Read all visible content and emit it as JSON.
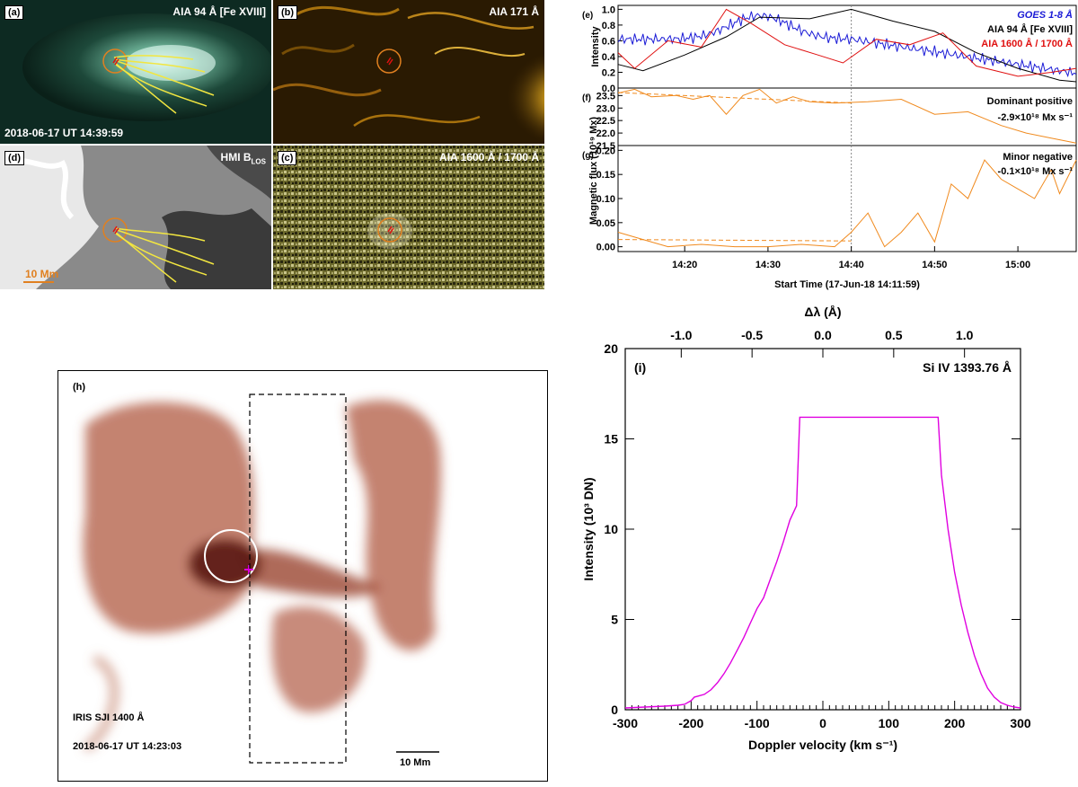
{
  "panels": {
    "a": {
      "tag": "(a)",
      "label": "AIA 94 Å [Fe XVIII]",
      "timestamp": "2018-06-17 UT 14:39:59",
      "bg": "#0d2a22"
    },
    "b": {
      "tag": "(b)",
      "label": "AIA 171 Å",
      "bg": "#2a1a02"
    },
    "d": {
      "tag": "(d)",
      "label": "HMI B",
      "label_sub": "LOS",
      "scale": "10 Mm",
      "bg": "#8a8a8a"
    },
    "c": {
      "tag": "(c)",
      "label": "AIA 1600 Å / 1700 Å",
      "bg": "#6d6a2c"
    },
    "h": {
      "tag": "(h)",
      "label": "IRIS SJI 1400 Å",
      "timestamp": "2018-06-17 UT 14:23:03",
      "scale": "10 Mm"
    }
  },
  "light_curves": {
    "e": {
      "tag": "(e)",
      "ylabel": "Intensity",
      "yticks": [
        "0.0",
        "0.2",
        "0.4",
        "0.6",
        "0.8",
        "1.0"
      ],
      "legend": [
        {
          "text": "GOES 1-8 Å",
          "color": "#1a1ad6"
        },
        {
          "text": "AIA 94 Å [Fe XVIII]",
          "color": "#000000"
        },
        {
          "text": "AIA 1600 Å / 1700 Å",
          "color": "#e01010"
        }
      ]
    },
    "f": {
      "tag": "(f)",
      "yticks": [
        "21.5",
        "22.0",
        "22.5",
        "23.0",
        "23.5"
      ],
      "legend_title": "Dominant positive",
      "legend_rate": "-2.9×10¹⁸ Mx s⁻¹"
    },
    "g": {
      "tag": "(g)",
      "yticks": [
        "0.00",
        "0.05",
        "0.10",
        "0.15",
        "0.20"
      ],
      "legend_title": "Minor negative",
      "legend_rate": "-0.1×10¹⁸ Mx s⁻¹"
    },
    "shared_ylabel": "Magnetic flux (10¹⁹ Mx)",
    "xticks": [
      "14:20",
      "14:30",
      "14:40",
      "14:50",
      "15:00"
    ],
    "xlabel": "Start Time (17-Jun-18 14:11:59)"
  },
  "chart_data": {
    "type": "line",
    "tag": "(i)",
    "title": "Si IV 1393.76 Å",
    "xlabel": "Doppler velocity (km s⁻¹)",
    "ylabel": "Intensity (10³ DN)",
    "top_xlabel": "Δλ (Å)",
    "xlim": [
      -300,
      300
    ],
    "ylim": [
      0,
      20
    ],
    "xticks": [
      "-300",
      "-200",
      "-100",
      "0",
      "100",
      "200",
      "300"
    ],
    "yticks": [
      "0",
      "5",
      "10",
      "15",
      "20"
    ],
    "top_xticks": [
      "-1.0",
      "-0.5",
      "0.0",
      "0.5",
      "1.0"
    ],
    "series": [
      {
        "color": "#e000e0",
        "x": [
          -300,
          -270,
          -240,
          -220,
          -210,
          -200,
          -195,
          -190,
          -180,
          -170,
          -160,
          -150,
          -140,
          -130,
          -120,
          -110,
          -100,
          -90,
          -80,
          -70,
          -60,
          -50,
          -40,
          -35,
          -30,
          0,
          50,
          100,
          150,
          175,
          180,
          190,
          200,
          210,
          220,
          230,
          240,
          250,
          260,
          270,
          280,
          290,
          300
        ],
        "y": [
          0.1,
          0.15,
          0.2,
          0.25,
          0.3,
          0.5,
          0.7,
          0.75,
          0.85,
          1.1,
          1.5,
          2.0,
          2.6,
          3.3,
          4.0,
          4.8,
          5.6,
          6.2,
          7.2,
          8.2,
          9.3,
          10.5,
          11.3,
          16.2,
          16.2,
          16.2,
          16.2,
          16.2,
          16.2,
          16.2,
          13.0,
          10.0,
          7.6,
          5.8,
          4.3,
          3.0,
          2.0,
          1.2,
          0.7,
          0.4,
          0.25,
          0.15,
          0.1
        ]
      }
    ]
  }
}
